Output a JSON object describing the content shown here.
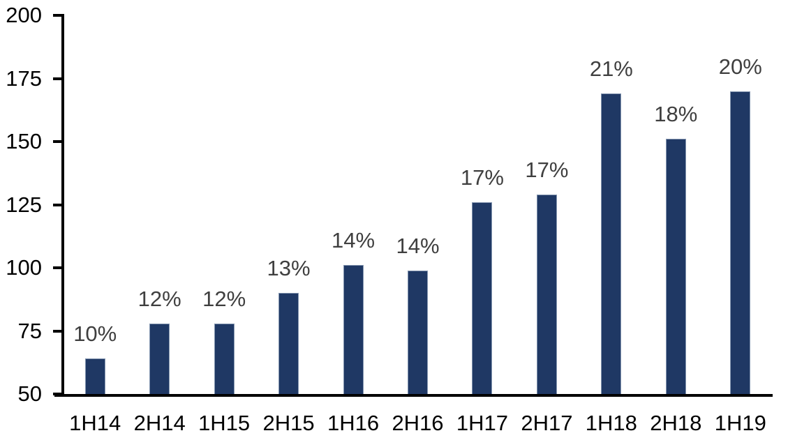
{
  "chart_data": {
    "type": "bar",
    "title": "",
    "xlabel": "",
    "ylabel": "",
    "categories": [
      "1H14",
      "2H14",
      "1H15",
      "2H15",
      "1H16",
      "2H16",
      "1H17",
      "2H17",
      "1H18",
      "2H18",
      "1H19"
    ],
    "values": [
      64,
      78,
      78,
      90,
      101,
      99,
      126,
      129,
      169,
      151,
      170
    ],
    "data_labels": [
      "10%",
      "12%",
      "12%",
      "13%",
      "14%",
      "14%",
      "17%",
      "17%",
      "21%",
      "18%",
      "20%"
    ],
    "ylim": [
      50,
      200
    ],
    "yticks": [
      50,
      75,
      100,
      125,
      150,
      175,
      200
    ],
    "grid": false,
    "legend": "none",
    "colors": {
      "bar_fill": "#1F3864",
      "bar_border": "#8496B0",
      "data_label": "#3F3F3F",
      "axis": "#000000",
      "tick_label": "#000000",
      "background": "#FFFFFF"
    }
  }
}
